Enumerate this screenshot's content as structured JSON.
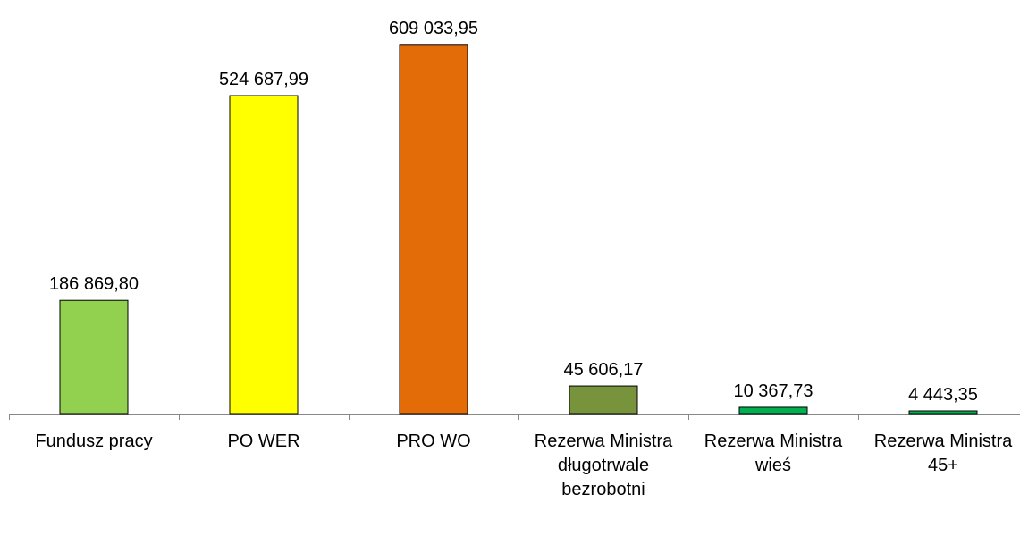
{
  "chart_data": {
    "type": "bar",
    "categories": [
      "Fundusz pracy",
      "PO WER",
      "PRO WO",
      "Rezerwa Ministra długotrwale bezrobotni",
      "Rezerwa Ministra wieś",
      "Rezerwa Ministra 45+"
    ],
    "values": [
      186869.8,
      524687.99,
      609033.95,
      45606.17,
      10367.73,
      4443.35
    ],
    "value_labels": [
      "186 869,80",
      "524 687,99",
      "609 033,95",
      "45 606,17",
      "10 367,73",
      "4 443,35"
    ],
    "colors": [
      "#92d050",
      "#ffff00",
      "#e36c09",
      "#77933c",
      "#00b050",
      "#00b050"
    ],
    "ylim": [
      0,
      650000
    ]
  }
}
